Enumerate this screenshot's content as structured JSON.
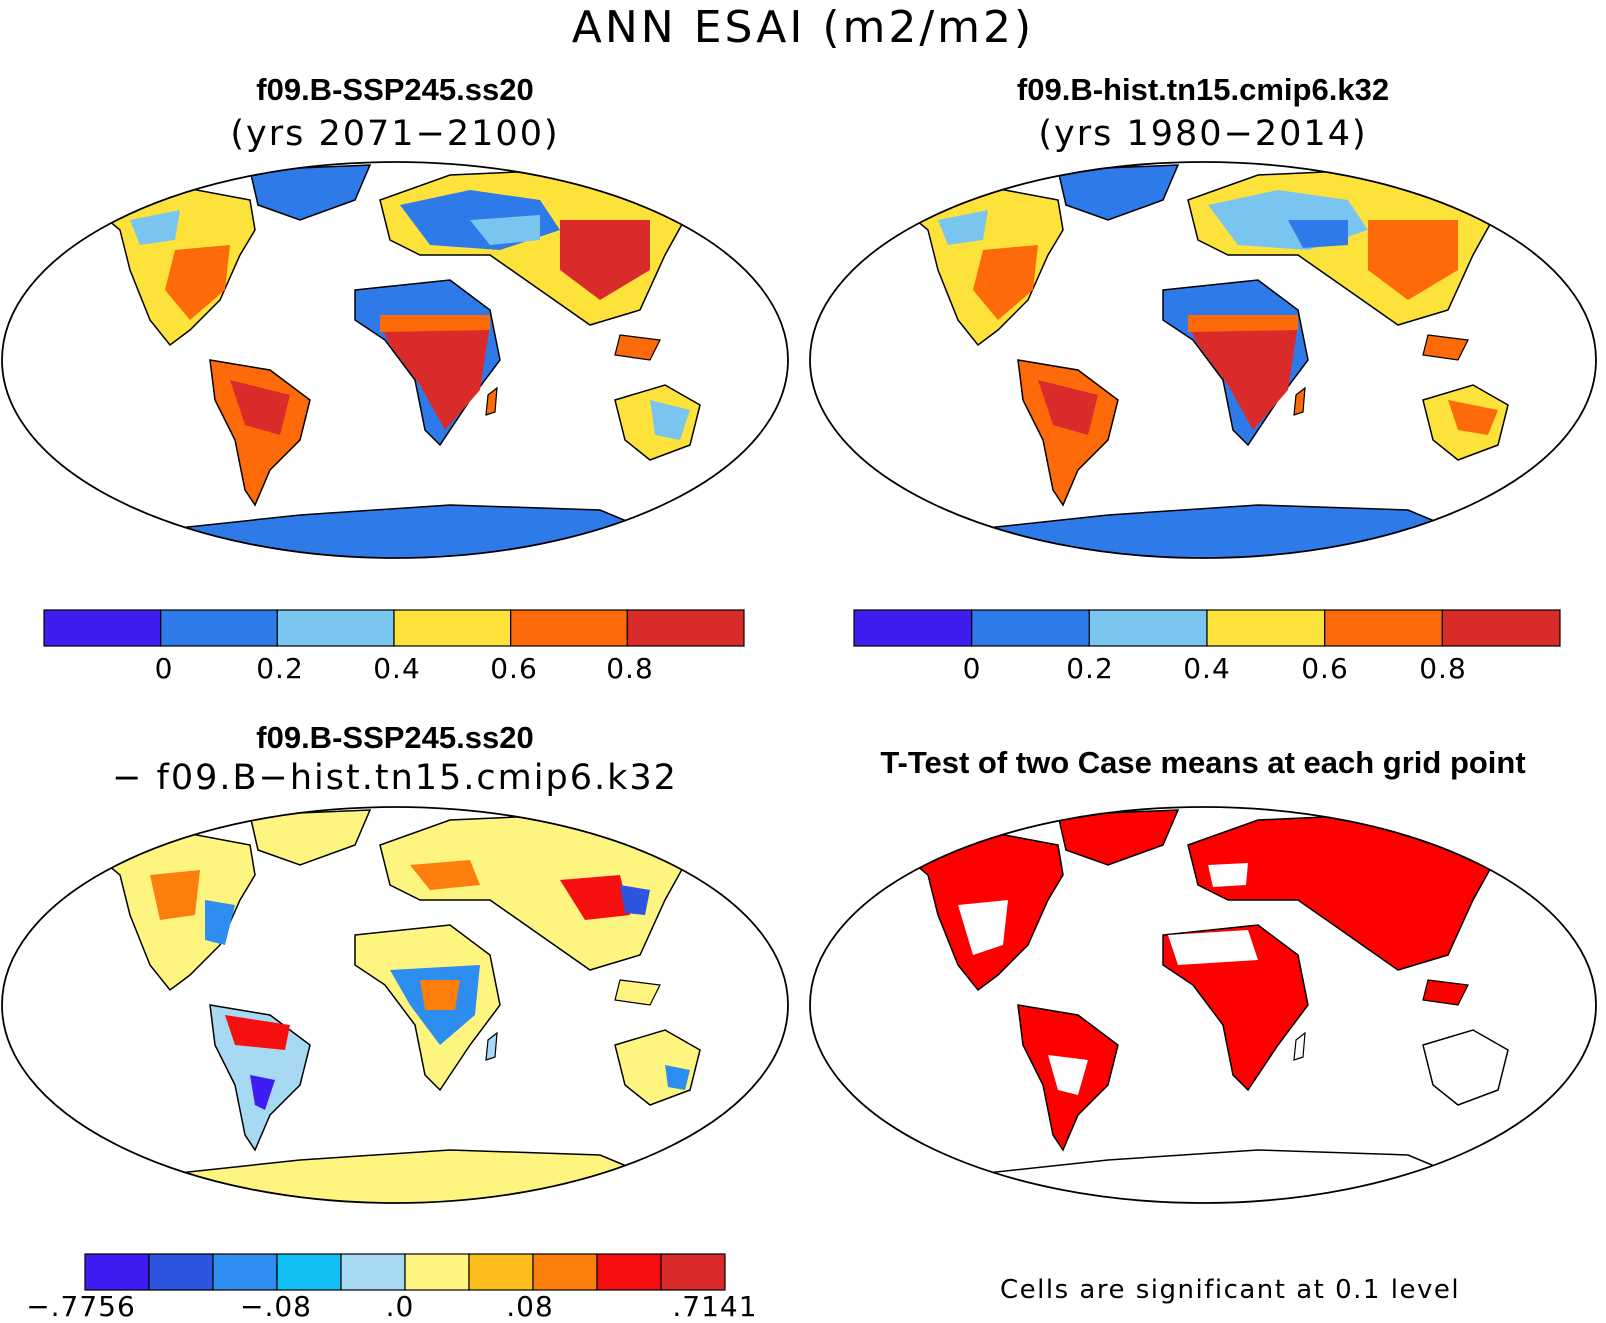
{
  "figure": {
    "title": "ANN ESAI (m2/m2)"
  },
  "panels": [
    {
      "id": "top-left",
      "case": "f09.B-SSP245.ss20",
      "subtitle": "(yrs 2071−2100)",
      "colorbar": {
        "colors": [
          "#3f1cf0",
          "#2d7ae8",
          "#79c5ef",
          "#fde23c",
          "#fd6a0a",
          "#da2b2b"
        ],
        "tick_labels": [
          "0",
          "0.2",
          "0.4",
          "0.6",
          "0.8"
        ]
      }
    },
    {
      "id": "top-right",
      "case": "f09.B-hist.tn15.cmip6.k32",
      "subtitle": "(yrs 1980−2014)",
      "colorbar": {
        "colors": [
          "#3f1cf0",
          "#2d7ae8",
          "#79c5ef",
          "#fde23c",
          "#fd6a0a",
          "#da2b2b"
        ],
        "tick_labels": [
          "0",
          "0.2",
          "0.4",
          "0.6",
          "0.8"
        ]
      }
    },
    {
      "id": "bottom-left",
      "case": "f09.B-SSP245.ss20",
      "subtitle": "− f09.B−hist.tn15.cmip6.k32",
      "colorbar": {
        "colors": [
          "#3f1cf0",
          "#2d55df",
          "#2e8ef0",
          "#12c0f5",
          "#a7d9f3",
          "#fdf57f",
          "#fdbd1a",
          "#fd7e0c",
          "#f50f0f",
          "#d82a2a"
        ],
        "tick_labels": [
          "−.7756",
          "−.08",
          ".0",
          ".08",
          ".7141"
        ]
      }
    },
    {
      "id": "bottom-right",
      "case": "T-Test of two Case means at each grid point",
      "note": "Cells are significant at 0.1 level"
    }
  ]
}
